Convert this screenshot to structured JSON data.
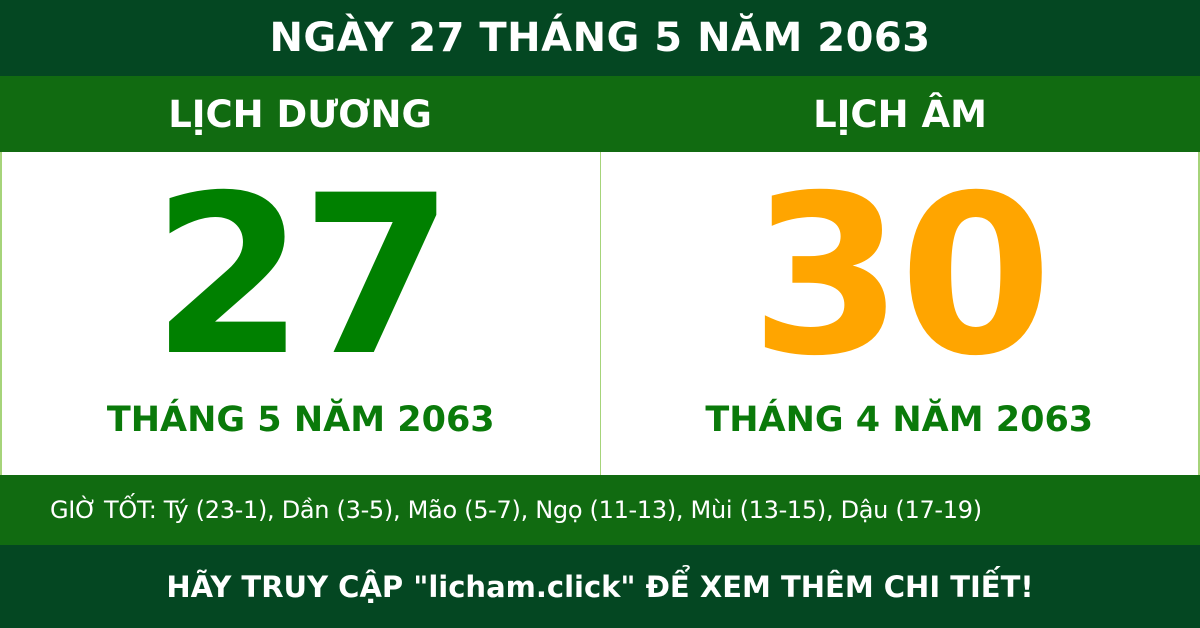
{
  "title": "NGÀY 27 THÁNG 5 NĂM 2063",
  "solar": {
    "label": "LỊCH DƯƠNG",
    "day": "27",
    "month_year": "THÁNG 5 NĂM 2063"
  },
  "lunar": {
    "label": "LỊCH ÂM",
    "day": "30",
    "month_year": "THÁNG 4 NĂM 2063"
  },
  "good_hours": "GIỜ TỐT: Tý (23-1), Dần (3-5), Mão (5-7), Ngọ (11-13), Mùi (13-15), Dậu (17-19)",
  "footer": "HÃY TRUY CẬP \"licham.click\" ĐỂ XEM THÊM CHI TIẾT!",
  "colors": {
    "dark_green": "#044722",
    "mid_green": "#116b11",
    "solar_day": "#008000",
    "lunar_day": "#ffa500"
  }
}
